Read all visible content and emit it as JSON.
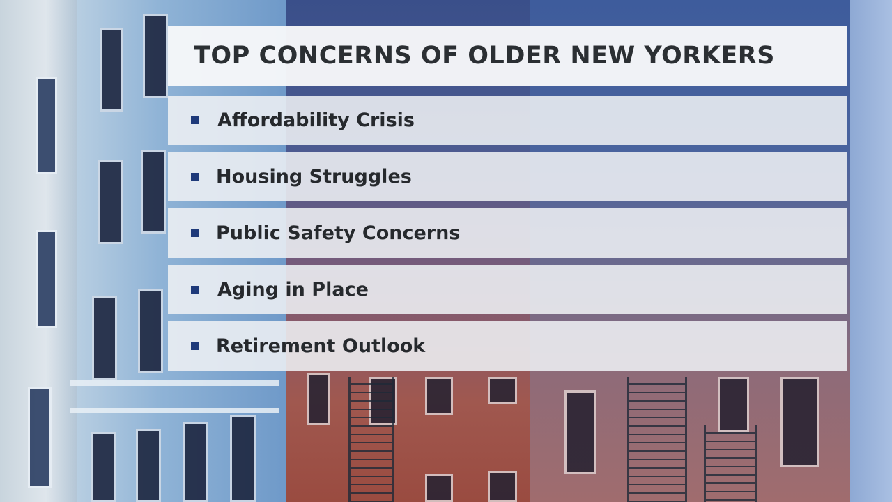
{
  "title": "TOP CONCERNS OF OLDER NEW YORKERS",
  "concerns": [
    "Affordability Crisis",
    "Housing Struggles",
    "Public Safety Concerns",
    "Aging in Place",
    "Retirement Outlook"
  ],
  "colors": {
    "bullet": "#1e3a7a",
    "panel": "#eef0f4",
    "text": "#26292d"
  }
}
